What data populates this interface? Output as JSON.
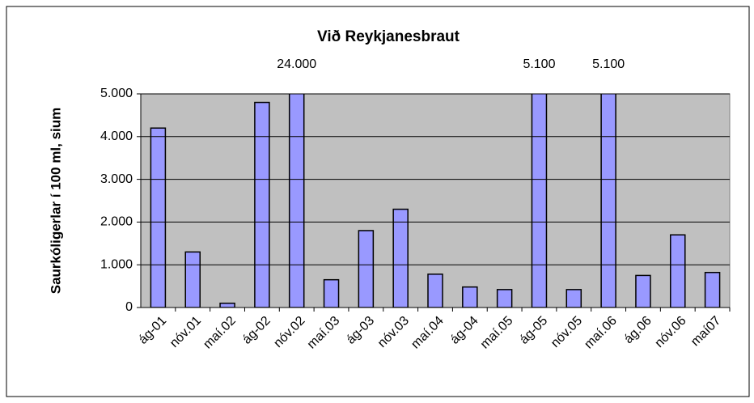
{
  "chart_data": {
    "type": "bar",
    "title": "Við Reykjanesbraut",
    "y_label": "Saurkóligerlar í 100 ml, sium",
    "categories": [
      "ág-01",
      "nóv.01",
      "maí.02",
      "ág-02",
      "nóv.02",
      "maí.03",
      "ág-03",
      "nóv.03",
      "maí.04",
      "ág-04",
      "maí.05",
      "ág-05",
      "nóv.05",
      "maí.06",
      "ág.06",
      "nóv.06",
      "maí07"
    ],
    "values": [
      4200,
      1300,
      100,
      4800,
      24000,
      650,
      1800,
      2300,
      780,
      480,
      420,
      5100,
      420,
      5100,
      750,
      1700,
      820
    ],
    "value_labels": [
      null,
      null,
      null,
      null,
      "24.000",
      null,
      null,
      null,
      null,
      null,
      null,
      "5.100",
      null,
      "5.100",
      null,
      null,
      null
    ],
    "color": "#9999ff",
    "ylim": [
      0,
      5000
    ],
    "yticks": [
      0,
      {
        "value": 1000,
        "label": "1.000"
      },
      {
        "value": 2000,
        "label": "2.000"
      },
      {
        "value": 3000,
        "label": "3.000"
      },
      {
        "value": 4000,
        "label": "4.000"
      },
      {
        "value": 5000,
        "label": "5.000"
      }
    ],
    "grid": true
  }
}
